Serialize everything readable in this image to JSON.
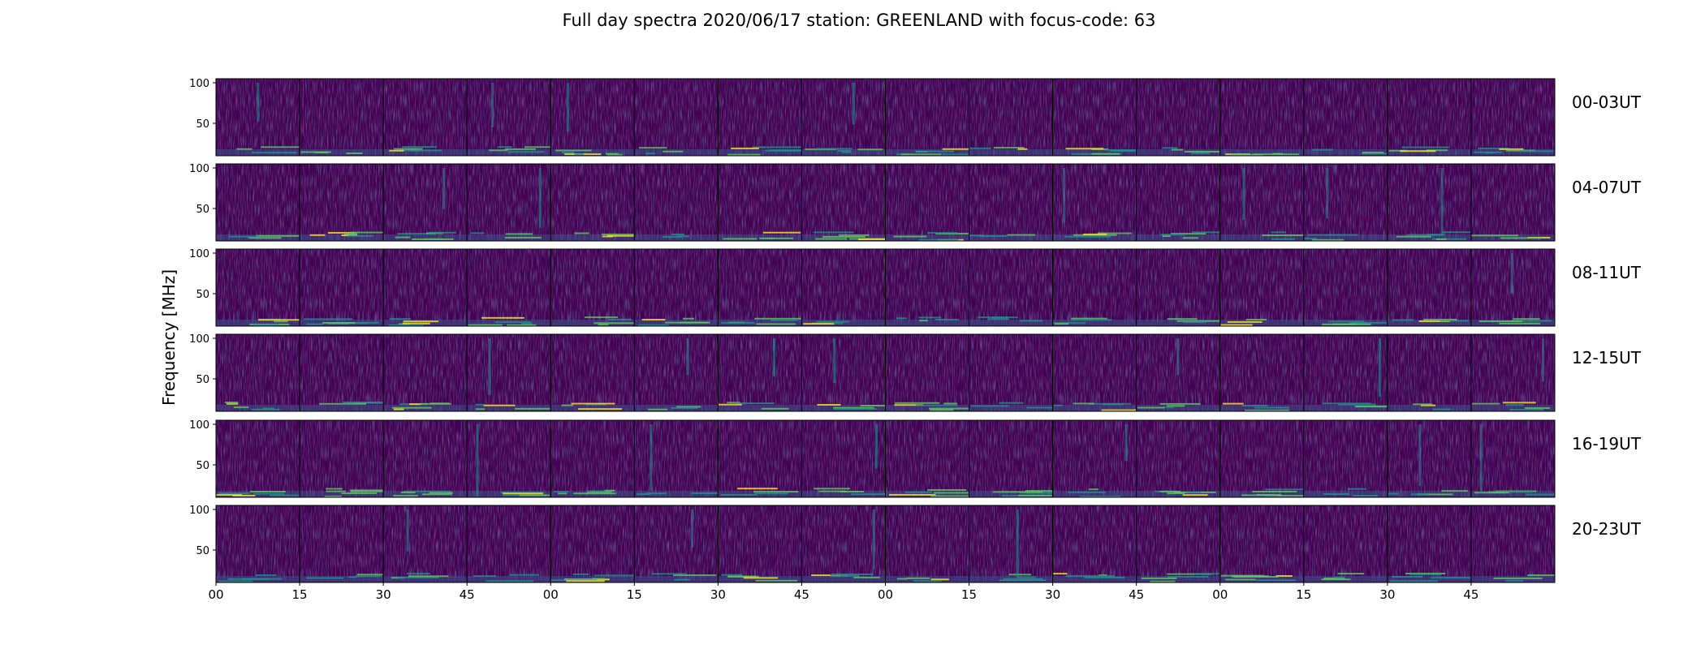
{
  "chart_data": {
    "type": "heatmap",
    "title": "Full day spectra 2020/06/17 station: GREENLAND with focus-code: 63",
    "ylabel": "Frequency [MHz]",
    "xlabel": "",
    "ylim": [
      10,
      105
    ],
    "y_ticks": [
      50,
      100
    ],
    "x_tick_labels": [
      "00",
      "15",
      "30",
      "45",
      "00",
      "15",
      "30",
      "45",
      "00",
      "15",
      "30",
      "45",
      "00",
      "15",
      "30",
      "45"
    ],
    "panels_per_row": 16,
    "panel_minutes": 15,
    "rows": [
      {
        "label": "00-03UT"
      },
      {
        "label": "04-07UT"
      },
      {
        "label": "08-11UT"
      },
      {
        "label": "12-15UT"
      },
      {
        "label": "16-19UT"
      },
      {
        "label": "20-23UT"
      }
    ],
    "colormap": [
      "#440154",
      "#3b528b",
      "#21918c",
      "#5ec962",
      "#fde725"
    ],
    "grid": false,
    "legend": "none"
  }
}
